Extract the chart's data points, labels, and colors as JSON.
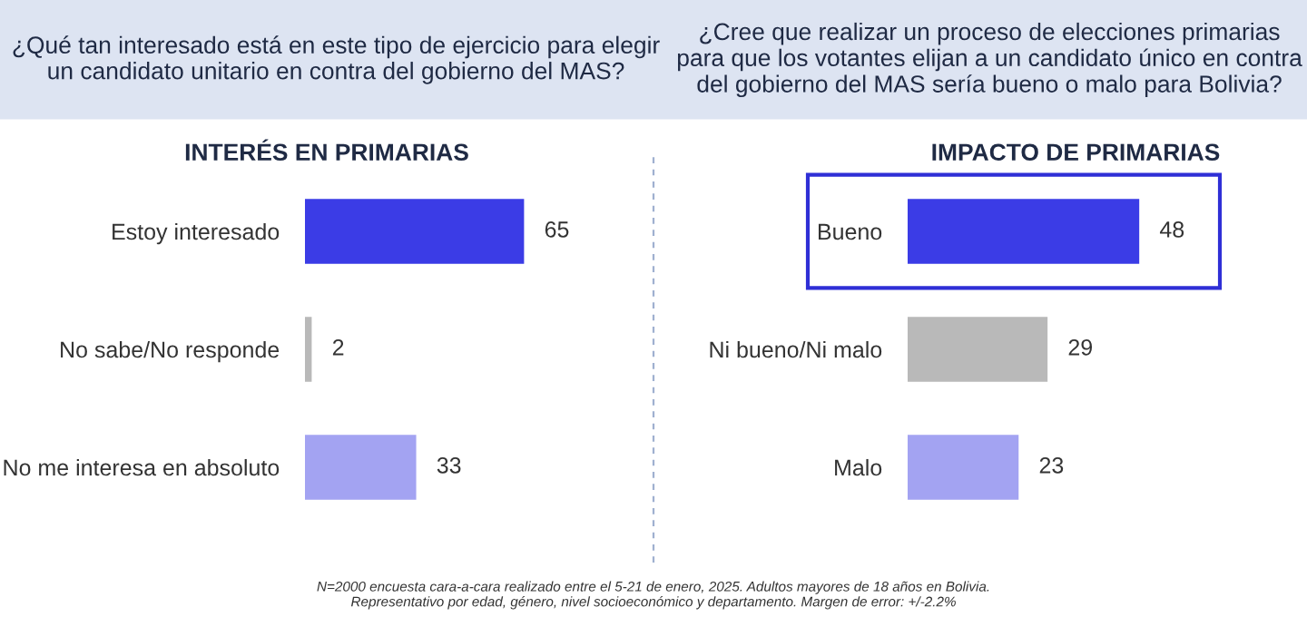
{
  "chart_data": [
    {
      "type": "bar",
      "orientation": "horizontal",
      "title": "¿Qué tan interesado está en este tipo de ejercicio para elegir un candidato unitario en contra del gobierno del MAS?",
      "subtitle": "INTERÉS EN PRIMARIAS",
      "categories": [
        "Estoy interesado",
        "No sabe/No responde",
        "No me interesa en absoluto"
      ],
      "values": [
        65,
        2,
        33
      ],
      "colors": [
        "#3b3ce6",
        "#b9b9b9",
        "#a3a3f2"
      ],
      "data_labels": true,
      "grid": false,
      "legend": false,
      "annotations": [
        "N=2000 encuesta cara-a-cara realizado entre el 5-21 de enero, 2025. Adultos mayores de 18 años en Bolivia.\nRepresentativo por edad, género, nivel socioeconómico y departamento. Margen de error: +/-2.2%"
      ]
    },
    {
      "type": "bar",
      "orientation": "horizontal",
      "title": "¿Cree que realizar un proceso de elecciones primarias para que los votantes elijan a un candidato único en contra del gobierno del MAS sería bueno o malo para Bolivia?",
      "subtitle": "IMPACTO DE PRIMARIAS",
      "categories": [
        "Bueno",
        "Ni bueno/Ni malo",
        "Malo"
      ],
      "values": [
        48,
        29,
        23
      ],
      "colors": [
        "#3b3ce6",
        "#b9b9b9",
        "#a3a3f2"
      ],
      "data_labels": true,
      "grid": false,
      "legend": false
    }
  ]
}
